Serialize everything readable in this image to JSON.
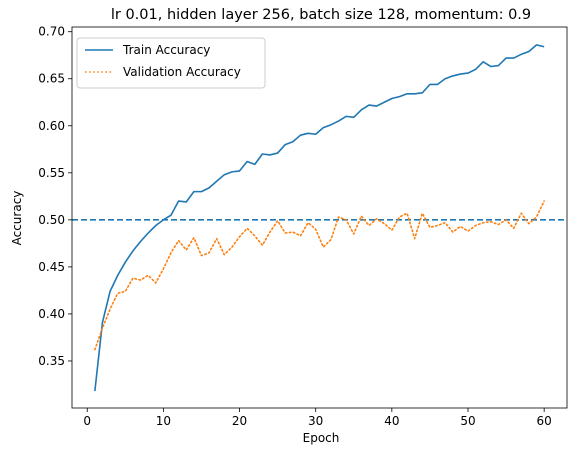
{
  "chart_data": {
    "type": "line",
    "title": "lr 0.01, hidden layer 256, batch size 128, momentum: 0.9",
    "xlabel": "Epoch",
    "ylabel": "Accuracy",
    "xlim": [
      -2,
      63
    ],
    "ylim": [
      0.3,
      0.705
    ],
    "xticks": [
      0,
      10,
      20,
      30,
      40,
      50,
      60
    ],
    "yticks": [
      0.35,
      0.4,
      0.45,
      0.5,
      0.55,
      0.6,
      0.65,
      0.7
    ],
    "grid": false,
    "legend_position": "top-left",
    "reference_line": {
      "y": 0.5,
      "style": "dashed",
      "color": "#1f77b4"
    },
    "series": [
      {
        "name": "Train Accuracy",
        "color": "#1f77b4",
        "style": "solid",
        "x": [
          1,
          2,
          3,
          4,
          5,
          6,
          7,
          8,
          9,
          10,
          11,
          12,
          13,
          14,
          15,
          16,
          17,
          18,
          19,
          20,
          21,
          22,
          23,
          24,
          25,
          26,
          27,
          28,
          29,
          30,
          31,
          32,
          33,
          34,
          35,
          36,
          37,
          38,
          39,
          40,
          41,
          42,
          43,
          44,
          45,
          46,
          47,
          48,
          49,
          50,
          51,
          52,
          53,
          54,
          55,
          56,
          57,
          58,
          59,
          60
        ],
        "values": [
          0.318,
          0.391,
          0.424,
          0.441,
          0.455,
          0.467,
          0.477,
          0.486,
          0.494,
          0.5,
          0.505,
          0.52,
          0.519,
          0.53,
          0.53,
          0.534,
          0.541,
          0.548,
          0.551,
          0.552,
          0.562,
          0.559,
          0.57,
          0.569,
          0.571,
          0.58,
          0.583,
          0.59,
          0.592,
          0.591,
          0.598,
          0.601,
          0.605,
          0.61,
          0.609,
          0.617,
          0.622,
          0.621,
          0.625,
          0.629,
          0.631,
          0.634,
          0.634,
          0.635,
          0.644,
          0.644,
          0.65,
          0.653,
          0.655,
          0.656,
          0.66,
          0.668,
          0.663,
          0.664,
          0.672,
          0.672,
          0.676,
          0.679,
          0.686,
          0.684
        ]
      },
      {
        "name": "Validation Accuracy",
        "color": "#ff7f0e",
        "style": "dotted",
        "x": [
          1,
          2,
          3,
          4,
          5,
          6,
          7,
          8,
          9,
          10,
          11,
          12,
          13,
          14,
          15,
          16,
          17,
          18,
          19,
          20,
          21,
          22,
          23,
          24,
          25,
          26,
          27,
          28,
          29,
          30,
          31,
          32,
          33,
          34,
          35,
          36,
          37,
          38,
          39,
          40,
          41,
          42,
          43,
          44,
          45,
          46,
          47,
          48,
          49,
          50,
          51,
          52,
          53,
          54,
          55,
          56,
          57,
          58,
          59,
          60
        ],
        "values": [
          0.362,
          0.385,
          0.405,
          0.422,
          0.424,
          0.438,
          0.436,
          0.441,
          0.433,
          0.448,
          0.465,
          0.478,
          0.468,
          0.481,
          0.462,
          0.465,
          0.48,
          0.463,
          0.471,
          0.482,
          0.491,
          0.483,
          0.473,
          0.487,
          0.499,
          0.486,
          0.487,
          0.483,
          0.497,
          0.49,
          0.471,
          0.479,
          0.503,
          0.5,
          0.485,
          0.504,
          0.494,
          0.501,
          0.496,
          0.489,
          0.503,
          0.507,
          0.48,
          0.507,
          0.492,
          0.494,
          0.497,
          0.487,
          0.493,
          0.488,
          0.494,
          0.497,
          0.498,
          0.495,
          0.5,
          0.491,
          0.507,
          0.496,
          0.503,
          0.52
        ]
      }
    ]
  }
}
